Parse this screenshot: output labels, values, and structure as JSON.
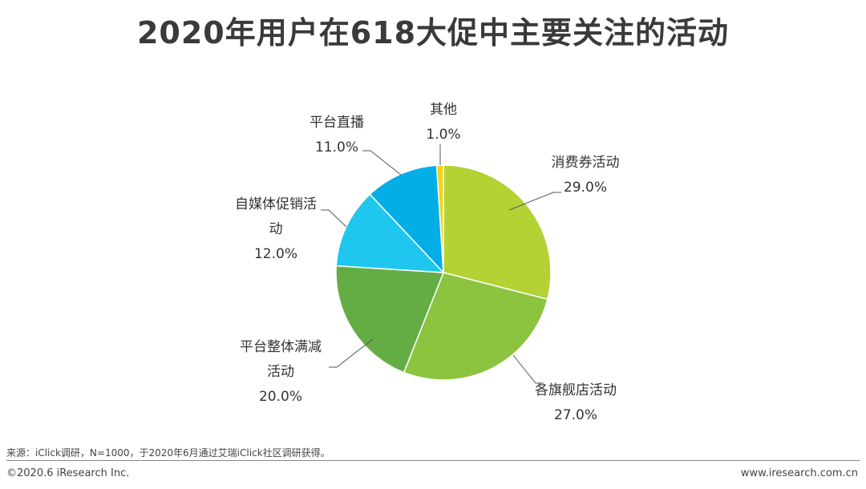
{
  "title": "2020年用户在618大促中主要关注的活动",
  "chart_data": {
    "type": "pie",
    "slices": [
      {
        "label_lines": [
          "消费券活动"
        ],
        "value_label": "29.0%",
        "value": 29.0,
        "color": "#b3d234"
      },
      {
        "label_lines": [
          "各旗舰店活动"
        ],
        "value_label": "27.0%",
        "value": 27.0,
        "color": "#8cc43f"
      },
      {
        "label_lines": [
          "平台整体满减",
          "活动"
        ],
        "value_label": "20.0%",
        "value": 20.0,
        "color": "#64ad45"
      },
      {
        "label_lines": [
          "自媒体促销活",
          "动"
        ],
        "value_label": "12.0%",
        "value": 12.0,
        "color": "#1fc7ef"
      },
      {
        "label_lines": [
          "平台直播"
        ],
        "value_label": "11.0%",
        "value": 11.0,
        "color": "#03aee6"
      },
      {
        "label_lines": [
          "其他"
        ],
        "value_label": "1.0%",
        "value": 1.0,
        "color": "#f5d21a"
      }
    ]
  },
  "footer": {
    "source": "来源：iClick调研，N=1000，于2020年6月通过艾瑞iClick社区调研获得。",
    "copyright": "©2020.6 iResearch Inc.",
    "website": "www.iresearch.com.cn"
  }
}
